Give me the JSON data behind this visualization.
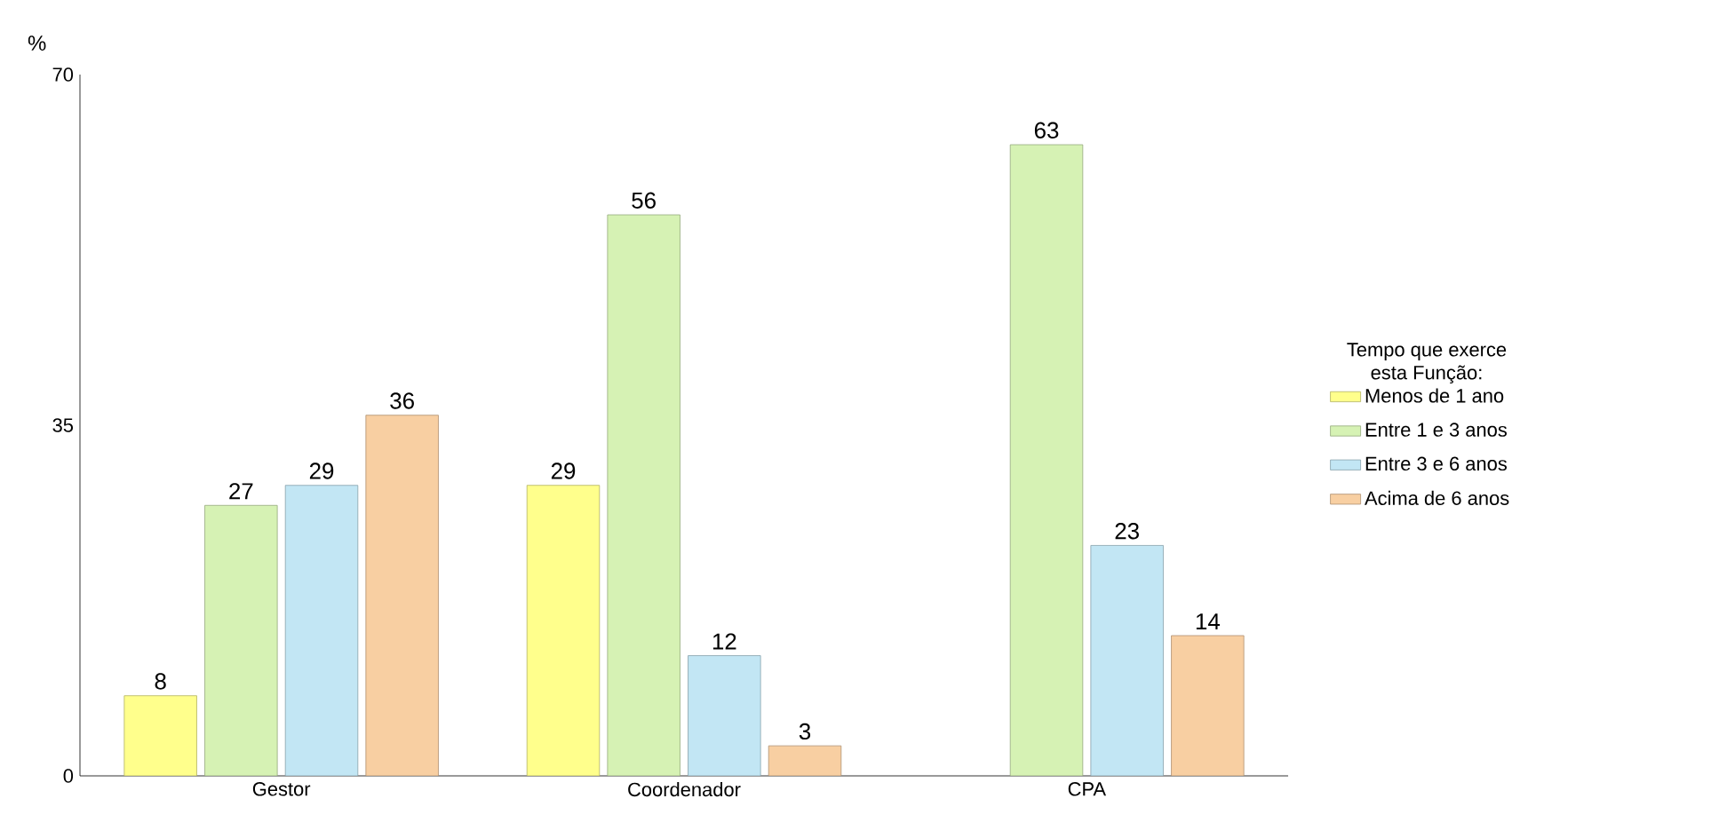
{
  "chart_data": {
    "type": "bar",
    "ylabel": "%",
    "legend_title": "Tempo que exerce esta Função:",
    "categories": [
      "Gestor",
      "Coordenador",
      "CPA"
    ],
    "series": [
      {
        "name": "Menos de 1 ano",
        "color": "#ffff8c",
        "values": [
          8,
          29,
          null
        ]
      },
      {
        "name": "Entre 1 e 3 anos",
        "color": "#d6f2b4",
        "values": [
          27,
          56,
          63
        ]
      },
      {
        "name": "Entre 3 e 6 anos",
        "color": "#c2e6f4",
        "values": [
          29,
          12,
          23
        ]
      },
      {
        "name": "Acima de 6 anos",
        "color": "#f8cfa2",
        "values": [
          36,
          3,
          14
        ]
      }
    ],
    "ylim": [
      0,
      70
    ],
    "yticks": [
      0,
      35,
      70
    ],
    "data_labels": true,
    "legend": "right",
    "grid": false
  }
}
